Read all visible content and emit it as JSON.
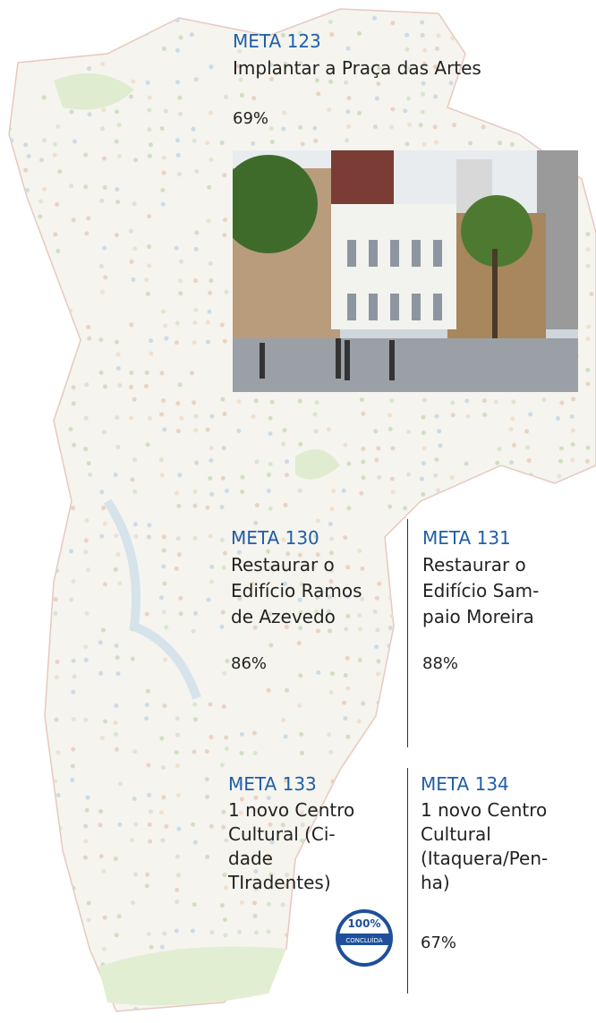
{
  "metas": [
    {
      "label": "META 123",
      "title": [
        "Implantar a Praça das Artes"
      ],
      "percent": "69%"
    },
    {
      "label": "META 130",
      "title": [
        "Restaurar o",
        "Edifício Ramos",
        "de Azevedo"
      ],
      "percent": "86%"
    },
    {
      "label": "META 131",
      "title": [
        "Restaurar o",
        "Edifício Sam-",
        "paio Moreira"
      ],
      "percent": "88%"
    },
    {
      "label": "META 133",
      "title": [
        "1 novo Centro",
        "Cultural (Ci-",
        "dade",
        "TIradentes)"
      ],
      "badge": [
        "100%",
        "CONCLUÍDA"
      ]
    },
    {
      "label": "META 134",
      "title": [
        "1 novo Centro",
        "Cultural",
        "(Itaquera/Pen-",
        "ha)"
      ],
      "percent": "67%"
    }
  ]
}
